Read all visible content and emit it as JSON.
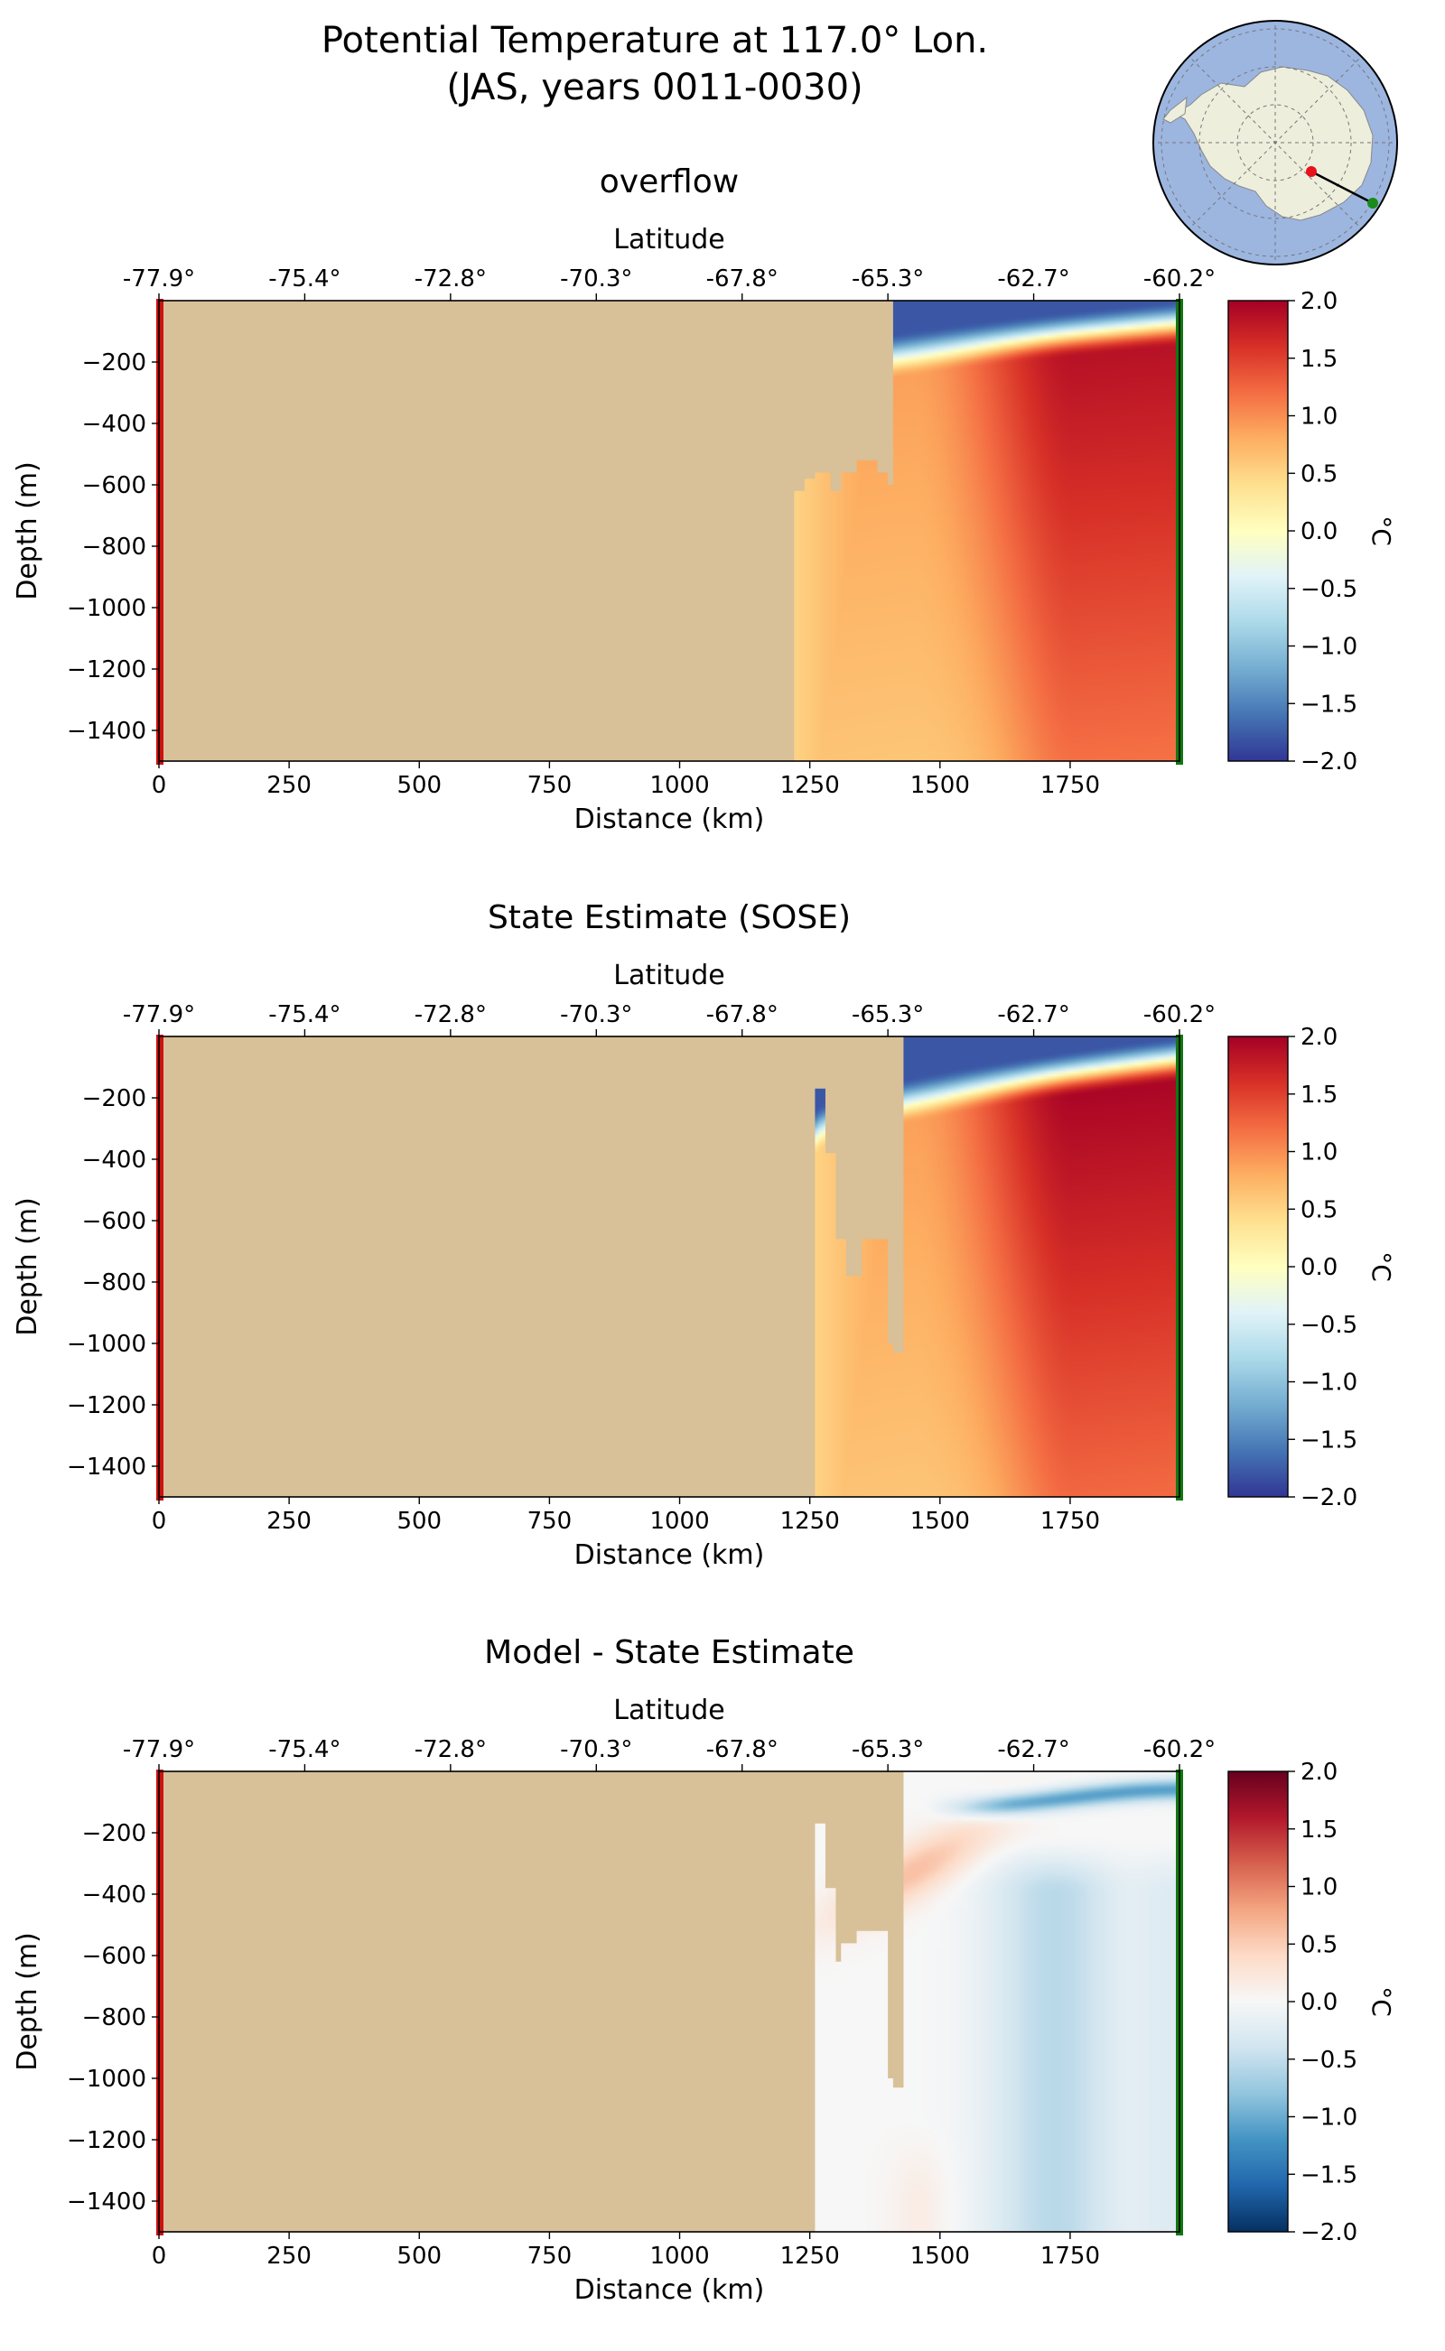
{
  "figure": {
    "title_line1": "Potential Temperature at 117.0° Lon.",
    "title_line2": "(JAS, years 0011-0030)"
  },
  "inset_map": {
    "description_colors": {
      "ocean": "#9cb6e0",
      "land": "#eeeedd",
      "start": "#e8121a",
      "end": "#1a8a1a"
    },
    "marker_start": "red dot",
    "marker_end": "green dot"
  },
  "colors": {
    "land_mask": "#d8c098",
    "left_edge": "#cc1111",
    "right_edge": "#117711",
    "rdylbu": [
      "#313695",
      "#4575b4",
      "#74add1",
      "#abd9e9",
      "#e0f3f8",
      "#ffffbf",
      "#fee090",
      "#fdae61",
      "#f46d43",
      "#d73027",
      "#a50026"
    ],
    "rdbu": [
      "#053061",
      "#2166ac",
      "#4393c3",
      "#92c5de",
      "#d1e5f0",
      "#f7f7f7",
      "#fddbc7",
      "#f4a582",
      "#d6604d",
      "#b2182b",
      "#67001f"
    ]
  },
  "chart_data": [
    {
      "type": "heatmap",
      "title": "overflow",
      "xlabel": "Distance (km)",
      "ylabel": "Depth (m)",
      "top_axis_label": "Latitude",
      "colorbar_label": "°C",
      "colormap": "RdYlBu_r",
      "xlim": [
        0,
        1960
      ],
      "ylim": [
        -1500,
        0
      ],
      "clim": [
        -2.0,
        2.0
      ],
      "x_ticks": [
        0,
        250,
        500,
        750,
        1000,
        1250,
        1500,
        1750
      ],
      "x_tick_labels": [
        "0",
        "250",
        "500",
        "750",
        "1000",
        "1250",
        "1500",
        "1750"
      ],
      "y_ticks": [
        -200,
        -400,
        -600,
        -800,
        -1000,
        -1200,
        -1400
      ],
      "y_tick_labels": [
        "−200",
        "−400",
        "−600",
        "−800",
        "−1000",
        "−1200",
        "−1400"
      ],
      "lat_tick_labels": [
        "-77.9°",
        "-75.4°",
        "-72.8°",
        "-70.3°",
        "-67.8°",
        "-65.3°",
        "-62.7°",
        "-60.2°"
      ],
      "colorbar_ticks": [
        "2.0",
        "1.5",
        "1.0",
        "0.5",
        "0.0",
        "−0.5",
        "−1.0",
        "−1.5",
        "−2.0"
      ],
      "bathymetry": [
        [
          0,
          -1500
        ],
        [
          1220,
          -1500
        ],
        [
          1220,
          -620
        ],
        [
          1240,
          -620
        ],
        [
          1240,
          -580
        ],
        [
          1260,
          -580
        ],
        [
          1260,
          -560
        ],
        [
          1290,
          -560
        ],
        [
          1290,
          -620
        ],
        [
          1310,
          -620
        ],
        [
          1310,
          -560
        ],
        [
          1340,
          -560
        ],
        [
          1340,
          -520
        ],
        [
          1380,
          -520
        ],
        [
          1380,
          -560
        ],
        [
          1400,
          -560
        ],
        [
          1400,
          -600
        ],
        [
          1410,
          -600
        ],
        [
          1410,
          -1500
        ]
      ],
      "ocean_start_km": 1220,
      "surface_layer": {
        "temp": -1.8,
        "depth_at_1250": 250,
        "depth_at_1960": 60
      },
      "deep_max_temp": 1.9,
      "deep_bottom_temp": 0.6
    },
    {
      "type": "heatmap",
      "title": "State Estimate (SOSE)",
      "xlabel": "Distance (km)",
      "ylabel": "Depth (m)",
      "top_axis_label": "Latitude",
      "colorbar_label": "°C",
      "colormap": "RdYlBu_r",
      "xlim": [
        0,
        1960
      ],
      "ylim": [
        -1500,
        0
      ],
      "clim": [
        -2.0,
        2.0
      ],
      "x_ticks": [
        0,
        250,
        500,
        750,
        1000,
        1250,
        1500,
        1750
      ],
      "x_tick_labels": [
        "0",
        "250",
        "500",
        "750",
        "1000",
        "1250",
        "1500",
        "1750"
      ],
      "y_ticks": [
        -200,
        -400,
        -600,
        -800,
        -1000,
        -1200,
        -1400
      ],
      "y_tick_labels": [
        "−200",
        "−400",
        "−600",
        "−800",
        "−1000",
        "−1200",
        "−1400"
      ],
      "lat_tick_labels": [
        "-77.9°",
        "-75.4°",
        "-72.8°",
        "-70.3°",
        "-67.8°",
        "-65.3°",
        "-62.7°",
        "-60.2°"
      ],
      "colorbar_ticks": [
        "2.0",
        "1.5",
        "1.0",
        "0.5",
        "0.0",
        "−0.5",
        "−1.0",
        "−1.5",
        "−2.0"
      ],
      "bathymetry": [
        [
          0,
          -1500
        ],
        [
          1260,
          -1500
        ],
        [
          1260,
          -170
        ],
        [
          1280,
          -170
        ],
        [
          1280,
          -380
        ],
        [
          1300,
          -380
        ],
        [
          1300,
          -660
        ],
        [
          1320,
          -660
        ],
        [
          1320,
          -780
        ],
        [
          1350,
          -780
        ],
        [
          1350,
          -660
        ],
        [
          1400,
          -660
        ],
        [
          1400,
          -1000
        ],
        [
          1410,
          -1000
        ],
        [
          1410,
          -1030
        ],
        [
          1430,
          -1030
        ],
        [
          1430,
          -1500
        ]
      ],
      "ocean_start_km": 1260,
      "surface_layer": {
        "temp": -1.8,
        "depth_at_1250": 300,
        "depth_at_1960": 60
      },
      "deep_max_temp": 2.0,
      "deep_bottom_temp": 0.6
    },
    {
      "type": "heatmap",
      "title": "Model - State Estimate",
      "xlabel": "Distance (km)",
      "ylabel": "Depth (m)",
      "top_axis_label": "Latitude",
      "colorbar_label": "°C",
      "colormap": "RdBu_r",
      "xlim": [
        0,
        1960
      ],
      "ylim": [
        -1500,
        0
      ],
      "clim": [
        -2.0,
        2.0
      ],
      "x_ticks": [
        0,
        250,
        500,
        750,
        1000,
        1250,
        1500,
        1750
      ],
      "x_tick_labels": [
        "0",
        "250",
        "500",
        "750",
        "1000",
        "1250",
        "1500",
        "1750"
      ],
      "y_ticks": [
        -200,
        -400,
        -600,
        -800,
        -1000,
        -1200,
        -1400
      ],
      "y_tick_labels": [
        "−200",
        "−400",
        "−600",
        "−800",
        "−1000",
        "−1200",
        "−1400"
      ],
      "lat_tick_labels": [
        "-77.9°",
        "-75.4°",
        "-72.8°",
        "-70.3°",
        "-67.8°",
        "-65.3°",
        "-62.7°",
        "-60.2°"
      ],
      "colorbar_ticks": [
        "2.0",
        "1.5",
        "1.0",
        "0.5",
        "0.0",
        "−0.5",
        "−1.0",
        "−1.5",
        "−2.0"
      ],
      "bathymetry": [
        [
          0,
          -1500
        ],
        [
          1260,
          -1500
        ],
        [
          1260,
          -170
        ],
        [
          1280,
          -170
        ],
        [
          1280,
          -380
        ],
        [
          1300,
          -380
        ],
        [
          1300,
          -620
        ],
        [
          1310,
          -620
        ],
        [
          1310,
          -560
        ],
        [
          1340,
          -560
        ],
        [
          1340,
          -520
        ],
        [
          1400,
          -520
        ],
        [
          1400,
          -1000
        ],
        [
          1410,
          -1000
        ],
        [
          1410,
          -1030
        ],
        [
          1430,
          -1030
        ],
        [
          1430,
          -1500
        ]
      ],
      "ocean_start_km": 1260,
      "features": {
        "thin_surface_band": -0.9,
        "warm_tongue": 0.6,
        "cool_column": -0.6
      }
    }
  ]
}
